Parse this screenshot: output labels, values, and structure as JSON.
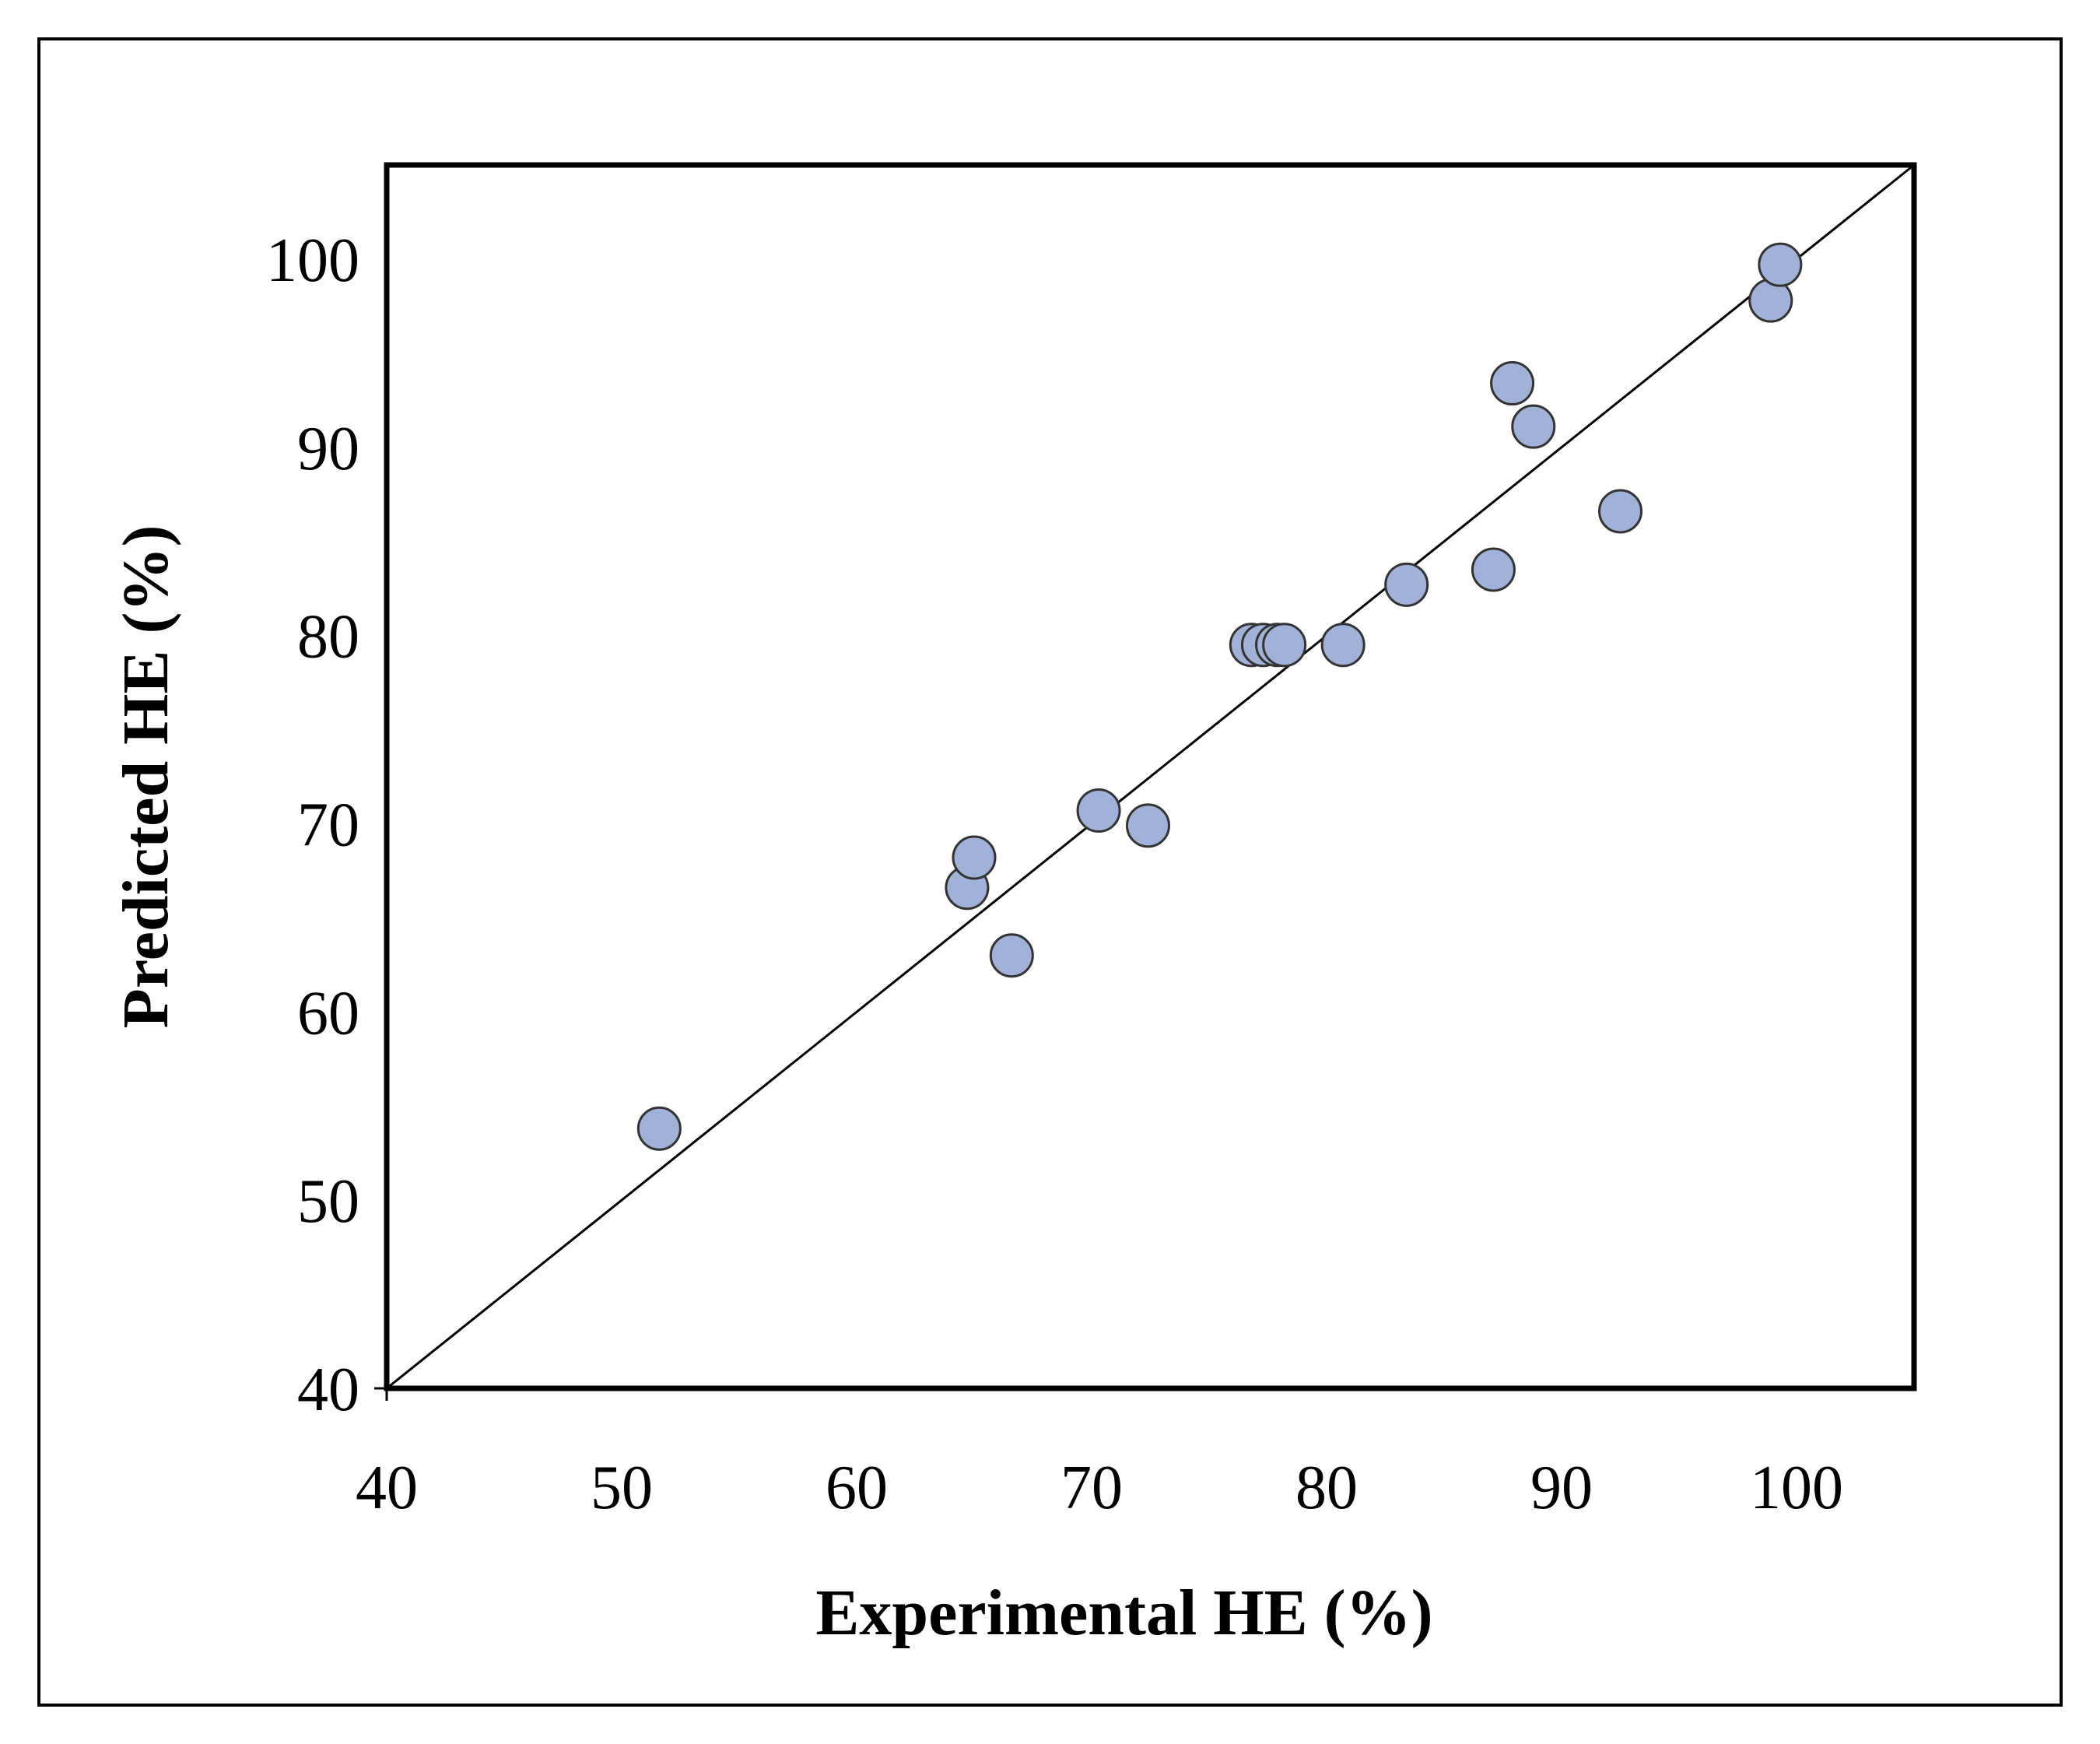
{
  "chart_data": {
    "type": "scatter",
    "title": "",
    "xlabel": "Experimental HE (%)",
    "ylabel": "Predicted HE (%)",
    "xlim": [
      40,
      105
    ],
    "ylim": [
      40,
      105
    ],
    "x_ticks": [
      40,
      50,
      60,
      70,
      80,
      90,
      100
    ],
    "y_ticks": [
      40,
      50,
      60,
      70,
      80,
      90,
      100
    ],
    "x_tick_labels": [
      "40",
      "50",
      "60",
      "70",
      "80",
      "90",
      "100"
    ],
    "y_tick_labels": [
      "40",
      "50",
      "60",
      "70",
      "80",
      "90",
      "100"
    ],
    "grid": false,
    "legend": "none",
    "marker_color": "#a2b1d8",
    "marker_edge_color": "#333333",
    "reference_line": {
      "label": "y = x",
      "from": [
        40,
        40
      ],
      "to": [
        105,
        105
      ]
    },
    "series": [
      {
        "name": "HE",
        "points": [
          [
            51.6,
            53.8
          ],
          [
            64.7,
            66.6
          ],
          [
            65.0,
            68.2
          ],
          [
            66.6,
            63.0
          ],
          [
            70.3,
            70.7
          ],
          [
            72.4,
            69.9
          ],
          [
            76.8,
            79.5
          ],
          [
            77.3,
            79.5
          ],
          [
            77.9,
            79.5
          ],
          [
            78.2,
            79.5
          ],
          [
            80.7,
            79.5
          ],
          [
            83.4,
            82.7
          ],
          [
            87.1,
            83.5
          ],
          [
            87.9,
            93.4
          ],
          [
            88.8,
            91.1
          ],
          [
            92.5,
            86.6
          ],
          [
            98.9,
            97.8
          ],
          [
            99.3,
            99.7
          ]
        ]
      }
    ]
  }
}
